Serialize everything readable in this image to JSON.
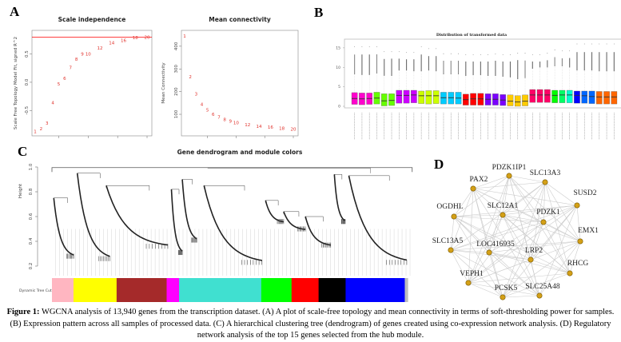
{
  "panels": {
    "A": {
      "letter": "A"
    },
    "B": {
      "letter": "B"
    },
    "C": {
      "letter": "C"
    },
    "D": {
      "letter": "D"
    }
  },
  "chart_data": [
    {
      "id": "scale-independence",
      "type": "scatter",
      "title": "Scale independence",
      "xlabel": "",
      "ylabel": "Scale Free Topology Model Fit, signed R^2",
      "ylim": [
        -0.95,
        0.92
      ],
      "yticks": [
        -0.5,
        0.0,
        0.5
      ],
      "threshold_line": 0.8,
      "threshold_color": "#ff0000",
      "point_color": "#e0302a",
      "points": [
        {
          "power": 1,
          "value": -0.87
        },
        {
          "power": 2,
          "value": -0.82
        },
        {
          "power": 3,
          "value": -0.72
        },
        {
          "power": 4,
          "value": -0.36
        },
        {
          "power": 5,
          "value": -0.03
        },
        {
          "power": 6,
          "value": 0.07
        },
        {
          "power": 7,
          "value": 0.26
        },
        {
          "power": 8,
          "value": 0.41
        },
        {
          "power": 9,
          "value": 0.5
        },
        {
          "power": 10,
          "value": 0.5
        },
        {
          "power": 12,
          "value": 0.61
        },
        {
          "power": 14,
          "value": 0.7
        },
        {
          "power": 16,
          "value": 0.74
        },
        {
          "power": 18,
          "value": 0.79
        },
        {
          "power": 20,
          "value": 0.8
        }
      ]
    },
    {
      "id": "mean-connectivity",
      "type": "scatter",
      "title": "Mean connectivity",
      "xlabel": "",
      "ylabel": "Mean Connectivity",
      "ylim": [
        5,
        470
      ],
      "yticks": [
        100,
        200,
        300,
        400
      ],
      "point_color": "#e0302a",
      "points": [
        {
          "power": 1,
          "value": 445
        },
        {
          "power": 2,
          "value": 265
        },
        {
          "power": 3,
          "value": 190
        },
        {
          "power": 4,
          "value": 145
        },
        {
          "power": 5,
          "value": 120
        },
        {
          "power": 6,
          "value": 100
        },
        {
          "power": 7,
          "value": 88
        },
        {
          "power": 8,
          "value": 78
        },
        {
          "power": 9,
          "value": 70
        },
        {
          "power": 10,
          "value": 64
        },
        {
          "power": 12,
          "value": 55
        },
        {
          "power": 14,
          "value": 48
        },
        {
          "power": 16,
          "value": 43
        },
        {
          "power": 18,
          "value": 39
        },
        {
          "power": 20,
          "value": 35
        }
      ]
    },
    {
      "id": "distribution-boxplot",
      "type": "box",
      "title": "Distribution of transformed data",
      "ylim": [
        0,
        16
      ],
      "yticks": [
        0,
        5,
        10,
        15
      ],
      "boxes": [
        {
          "color": "#ff00cc",
          "q1": 0.5,
          "median": 2.0,
          "q3": 3.5,
          "whisker": 8.3,
          "outlier_max": 15.3
        },
        {
          "color": "#ff00cc",
          "q1": 0.4,
          "median": 1.9,
          "q3": 3.4,
          "whisker": 8.1,
          "outlier_max": 15.3
        },
        {
          "color": "#ff00cc",
          "q1": 0.5,
          "median": 2.0,
          "q3": 3.4,
          "whisker": 8.1,
          "outlier_max": 15.3
        },
        {
          "color": "#66ff00",
          "q1": 0.6,
          "median": 2.1,
          "q3": 3.6,
          "whisker": 8.4,
          "outlier_max": 15.3
        },
        {
          "color": "#66ff00",
          "q1": 0.1,
          "median": 1.4,
          "q3": 3.2,
          "whisker": 7.9,
          "outlier_max": 14.0
        },
        {
          "color": "#66ff00",
          "q1": 0.2,
          "median": 1.5,
          "q3": 3.2,
          "whisker": 7.8,
          "outlier_max": 14.0
        },
        {
          "color": "#cc00ff",
          "q1": 0.8,
          "median": 2.8,
          "q3": 4.1,
          "whisker": 9.2,
          "outlier_max": 14.0
        },
        {
          "color": "#cc00ff",
          "q1": 0.8,
          "median": 2.8,
          "q3": 4.1,
          "whisker": 9.2,
          "outlier_max": 13.8
        },
        {
          "color": "#cc00ff",
          "q1": 0.9,
          "median": 2.9,
          "q3": 4.1,
          "whisker": 9.0,
          "outlier_max": 13.8
        },
        {
          "color": "#ccff00",
          "q1": 0.7,
          "median": 2.7,
          "q3": 3.9,
          "whisker": 9.0,
          "outlier_max": 15.3
        },
        {
          "color": "#ccff00",
          "q1": 0.6,
          "median": 2.7,
          "q3": 4.0,
          "whisker": 9.2,
          "outlier_max": 14.8
        },
        {
          "color": "#ccff00",
          "q1": 0.7,
          "median": 2.7,
          "q3": 4.0,
          "whisker": 9.0,
          "outlier_max": 14.8
        },
        {
          "color": "#00ccff",
          "q1": 0.6,
          "median": 2.2,
          "q3": 3.6,
          "whisker": 8.3,
          "outlier_max": 13.5
        },
        {
          "color": "#00ccff",
          "q1": 0.6,
          "median": 2.2,
          "q3": 3.6,
          "whisker": 8.3,
          "outlier_max": 13.5
        },
        {
          "color": "#00ccff",
          "q1": 0.6,
          "median": 2.1,
          "q3": 3.6,
          "whisker": 8.3,
          "outlier_max": 13.5
        },
        {
          "color": "#ff0000",
          "q1": 0.3,
          "median": 1.7,
          "q3": 3.1,
          "whisker": 7.8,
          "outlier_max": 13.2
        },
        {
          "color": "#ff0000",
          "q1": 0.3,
          "median": 1.9,
          "q3": 3.3,
          "whisker": 8.0,
          "outlier_max": 13.2
        },
        {
          "color": "#ff0000",
          "q1": 0.3,
          "median": 1.9,
          "q3": 3.3,
          "whisker": 8.0,
          "outlier_max": 13.2
        },
        {
          "color": "#7a00ff",
          "q1": 0.3,
          "median": 1.8,
          "q3": 3.2,
          "whisker": 7.8,
          "outlier_max": 13.2
        },
        {
          "color": "#7a00ff",
          "q1": 0.3,
          "median": 1.8,
          "q3": 3.2,
          "whisker": 7.8,
          "outlier_max": 13.4
        },
        {
          "color": "#7a00ff",
          "q1": 0.2,
          "median": 1.6,
          "q3": 3.0,
          "whisker": 7.6,
          "outlier_max": 13.2
        },
        {
          "color": "#ffcc00",
          "q1": 0.1,
          "median": 1.3,
          "q3": 2.9,
          "whisker": 7.5,
          "outlier_max": 13.2
        },
        {
          "color": "#ffcc00",
          "q1": 0.0,
          "median": 1.1,
          "q3": 2.7,
          "whisker": 7.0,
          "outlier_max": 13.6
        },
        {
          "color": "#ffcc00",
          "q1": 0.1,
          "median": 1.3,
          "q3": 2.9,
          "whisker": 7.3,
          "outlier_max": 13.6
        },
        {
          "color": "#ff0066",
          "q1": 1.0,
          "median": 2.9,
          "q3": 4.3,
          "whisker": 9.7,
          "outlier_max": 13.2
        },
        {
          "color": "#ff0066",
          "q1": 1.0,
          "median": 2.9,
          "q3": 4.3,
          "whisker": 10.0,
          "outlier_max": 13.2
        },
        {
          "color": "#ff0066",
          "q1": 1.0,
          "median": 2.9,
          "q3": 4.3,
          "whisker": 10.0,
          "outlier_max": 13.6
        },
        {
          "color": "#00ff00",
          "q1": 0.9,
          "median": 2.8,
          "q3": 4.1,
          "whisker": 10.3,
          "outlier_max": 14.5
        },
        {
          "color": "#00ff66",
          "q1": 0.9,
          "median": 2.9,
          "q3": 4.1,
          "whisker": 10.3,
          "outlier_max": 14.2
        },
        {
          "color": "#00ffcc",
          "q1": 0.9,
          "median": 2.9,
          "q3": 4.1,
          "whisker": 10.0,
          "outlier_max": 14.2
        },
        {
          "color": "#0000ff",
          "q1": 0.8,
          "median": 2.8,
          "q3": 3.9,
          "whisker": 9.2,
          "outlier_max": 16.0
        },
        {
          "color": "#0066ff",
          "q1": 0.8,
          "median": 2.7,
          "q3": 3.9,
          "whisker": 9.2,
          "outlier_max": 16.0
        },
        {
          "color": "#0066ff",
          "q1": 0.7,
          "median": 2.5,
          "q3": 3.9,
          "whisker": 9.2,
          "outlier_max": 16.0
        },
        {
          "color": "#ff6600",
          "q1": 0.6,
          "median": 2.4,
          "q3": 3.8,
          "whisker": 9.0,
          "outlier_max": 16.0
        },
        {
          "color": "#ff6600",
          "q1": 0.6,
          "median": 2.4,
          "q3": 3.8,
          "whisker": 9.0,
          "outlier_max": 16.0
        },
        {
          "color": "#ff6600",
          "q1": 0.6,
          "median": 2.4,
          "q3": 3.8,
          "whisker": 9.0,
          "outlier_max": 16.0
        }
      ]
    },
    {
      "id": "gene-dendrogram",
      "type": "dendrogram",
      "title": "Gene dendrogram and module colors",
      "ylabel": "Height",
      "ylim": [
        0.2,
        1.0
      ],
      "yticks": [
        0.2,
        0.4,
        0.6,
        0.8,
        1.0
      ],
      "color_bar_label": "Dynamic Tree Cut",
      "modules": [
        {
          "name": "pink",
          "color": "#ffb6c1",
          "fraction": 0.059
        },
        {
          "name": "yellow",
          "color": "#ffff00",
          "fraction": 0.118
        },
        {
          "name": "brown",
          "color": "#a52a2a",
          "fraction": 0.137
        },
        {
          "name": "magenta",
          "color": "#ff00ff",
          "fraction": 0.034
        },
        {
          "name": "turquoise",
          "color": "#40e0d0",
          "fraction": 0.225
        },
        {
          "name": "green",
          "color": "#00ff00",
          "fraction": 0.083
        },
        {
          "name": "red",
          "color": "#ff0000",
          "fraction": 0.074
        },
        {
          "name": "black",
          "color": "#000000",
          "fraction": 0.074
        },
        {
          "name": "blue",
          "color": "#0000ff",
          "fraction": 0.162
        },
        {
          "name": "grey",
          "color": "#bebebe",
          "fraction": 0.008
        }
      ],
      "clusters": [
        {
          "left": 0.005,
          "right": 0.06,
          "top": 0.75,
          "bottom": 0.27
        },
        {
          "left": 0.07,
          "right": 0.16,
          "top": 0.95,
          "bottom": 0.25
        },
        {
          "left": 0.15,
          "right": 0.32,
          "top": 0.85,
          "bottom": 0.35
        },
        {
          "left": 0.33,
          "right": 0.36,
          "top": 0.82,
          "bottom": 0.3
        },
        {
          "left": 0.36,
          "right": 0.4,
          "top": 0.9,
          "bottom": 0.4
        },
        {
          "left": 0.42,
          "right": 0.58,
          "top": 0.85,
          "bottom": 0.22
        },
        {
          "left": 0.59,
          "right": 0.64,
          "top": 0.73,
          "bottom": 0.55
        },
        {
          "left": 0.64,
          "right": 0.7,
          "top": 0.64,
          "bottom": 0.49
        },
        {
          "left": 0.7,
          "right": 0.77,
          "top": 0.6,
          "bottom": 0.36
        },
        {
          "left": 0.78,
          "right": 0.81,
          "top": 0.94,
          "bottom": 0.55
        },
        {
          "left": 0.82,
          "right": 0.98,
          "top": 0.93,
          "bottom": 0.22
        }
      ]
    },
    {
      "id": "hub-gene-network",
      "type": "network",
      "node_color": "#d4a017",
      "edge_color": "#cccccc",
      "nodes": [
        {
          "label": "PDZK1IP1"
        },
        {
          "label": "SLC13A3"
        },
        {
          "label": "PAX2"
        },
        {
          "label": "SUSD2"
        },
        {
          "label": "OGDHL"
        },
        {
          "label": "SLC12A1"
        },
        {
          "label": "PDZK1"
        },
        {
          "label": "EMX1"
        },
        {
          "label": "SLC13A5"
        },
        {
          "label": "LOC416935"
        },
        {
          "label": "LRP2"
        },
        {
          "label": "RHCG"
        },
        {
          "label": "VEPH1"
        },
        {
          "label": "PCSK5"
        },
        {
          "label": "SLC25A48"
        }
      ]
    }
  ],
  "caption": {
    "label": "Figure 1:",
    "text": " WGCNA analysis of 13,940 genes from the transcription dataset. (A) A plot of scale-free topology and mean connectivity in terms of soft-thresholding power for samples. (B) Expression pattern across all samples of processed data. (C) A hierarchical clustering tree (dendrogram) of genes created using co-expression network analysis. (D) Regulatory network analysis of the top 15 genes selected from the hub module."
  }
}
